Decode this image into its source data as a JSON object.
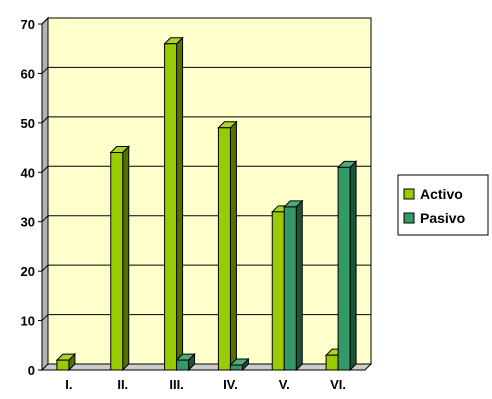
{
  "chart_data": {
    "type": "bar",
    "style": "3d-clustered-column",
    "categories": [
      "I.",
      "II.",
      "III.",
      "IV.",
      "V.",
      "VI."
    ],
    "series": [
      {
        "name": "Activo",
        "color": "#99cc00",
        "values": [
          2,
          44,
          66,
          49,
          32,
          3
        ]
      },
      {
        "name": "Pasivo",
        "color": "#339966",
        "values": [
          0,
          0,
          2,
          1,
          33,
          41
        ]
      }
    ],
    "ylim": [
      0,
      70
    ],
    "yticks": [
      0,
      10,
      20,
      30,
      40,
      50,
      60,
      70
    ],
    "grid": true,
    "plot_background": "#ffffcc",
    "legend_position": "right"
  }
}
